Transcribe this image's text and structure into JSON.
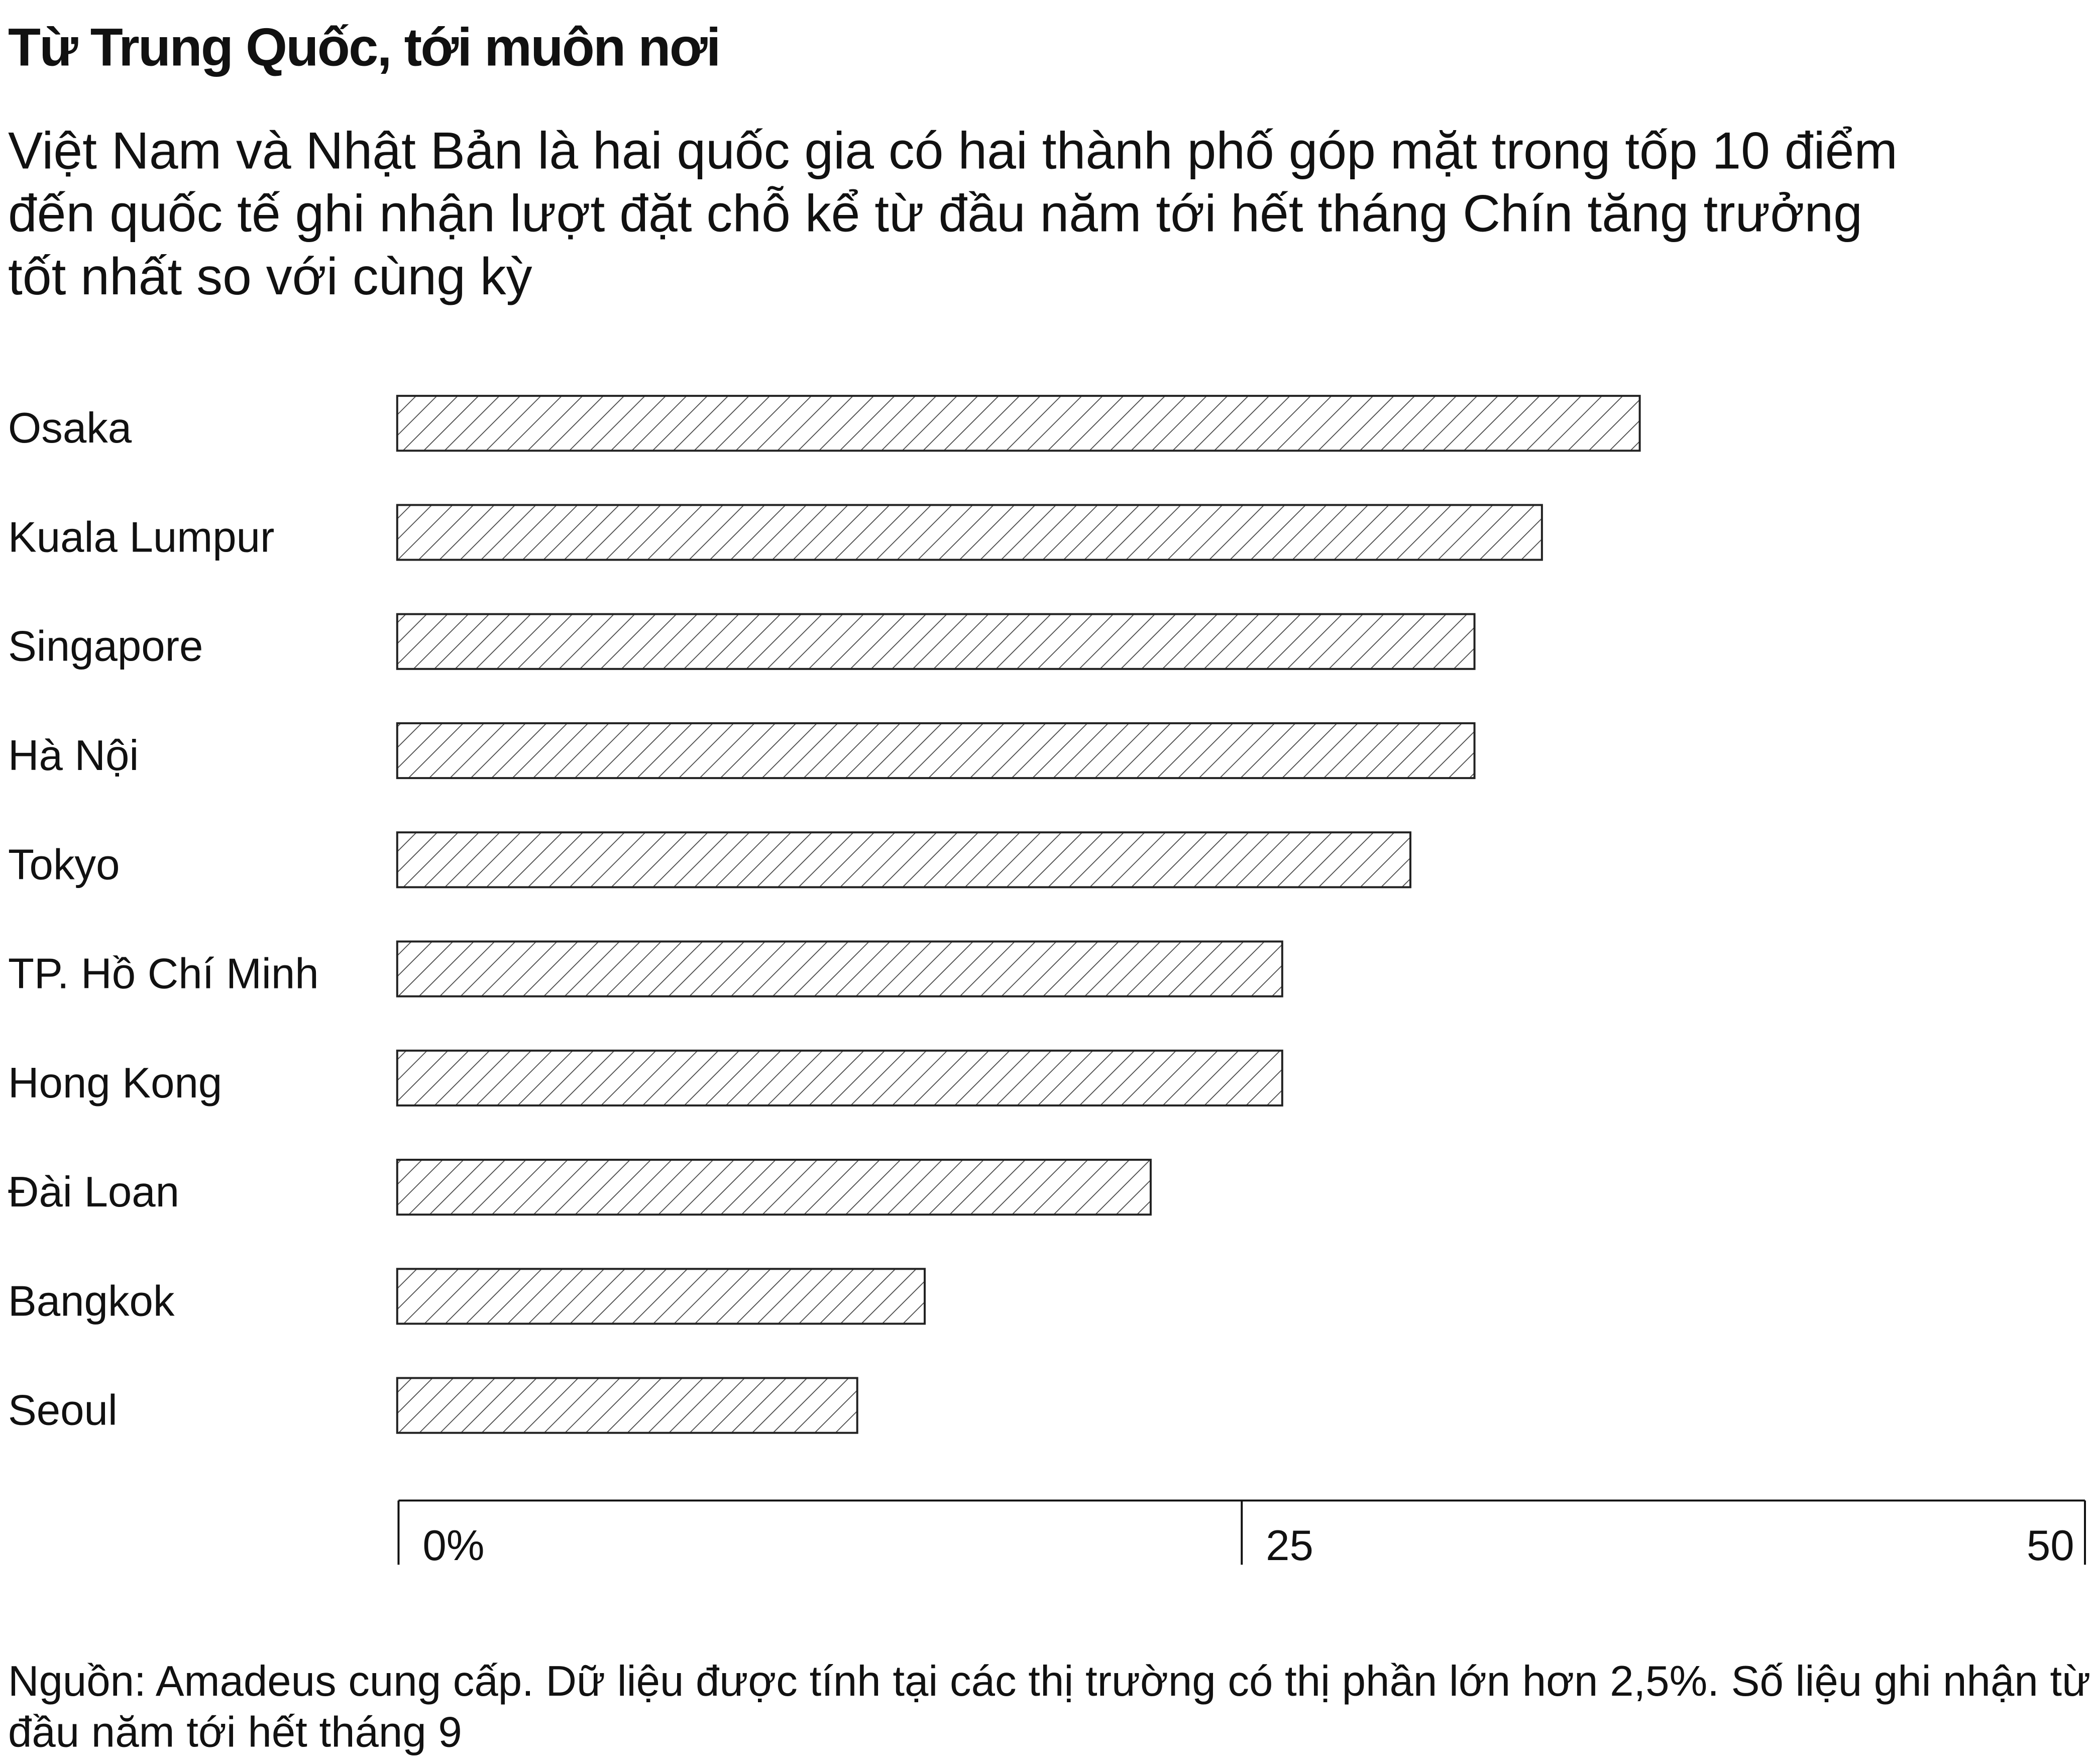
{
  "chart_data": {
    "type": "bar",
    "orientation": "horizontal",
    "title": "Từ Trung Quốc, tới muôn nơi",
    "subtitle": "Việt Nam và Nhật Bản là hai quốc gia có hai thành phố góp mặt trong tốp 10 điểm đến quốc tế ghi nhận lượt đặt chỗ kể từ đầu năm tới hết tháng Chín tăng trưởng tốt nhất so với cùng kỳ",
    "note": "Nguồn: Amadeus cung cấp. Dữ liệu được tính tại các thị trường có thị phần lớn hơn 2,5%. Số liệu ghi nhận từ đầu năm tới hết tháng 9",
    "categories": [
      "Osaka",
      "Kuala Lumpur",
      "Singapore",
      "Hà Nội",
      "Tokyo",
      "TP. Hồ Chí Minh",
      "Hong Kong",
      "Đài Loan",
      "Bangkok",
      "Seoul"
    ],
    "values": [
      36.8,
      33.9,
      31.9,
      31.9,
      30,
      26.2,
      26.2,
      22.3,
      15.6,
      13.6
    ],
    "color": "#222222",
    "xlim": [
      0,
      50
    ],
    "xticks": [
      {
        "value": 0,
        "label": "0%"
      },
      25,
      50
    ]
  }
}
